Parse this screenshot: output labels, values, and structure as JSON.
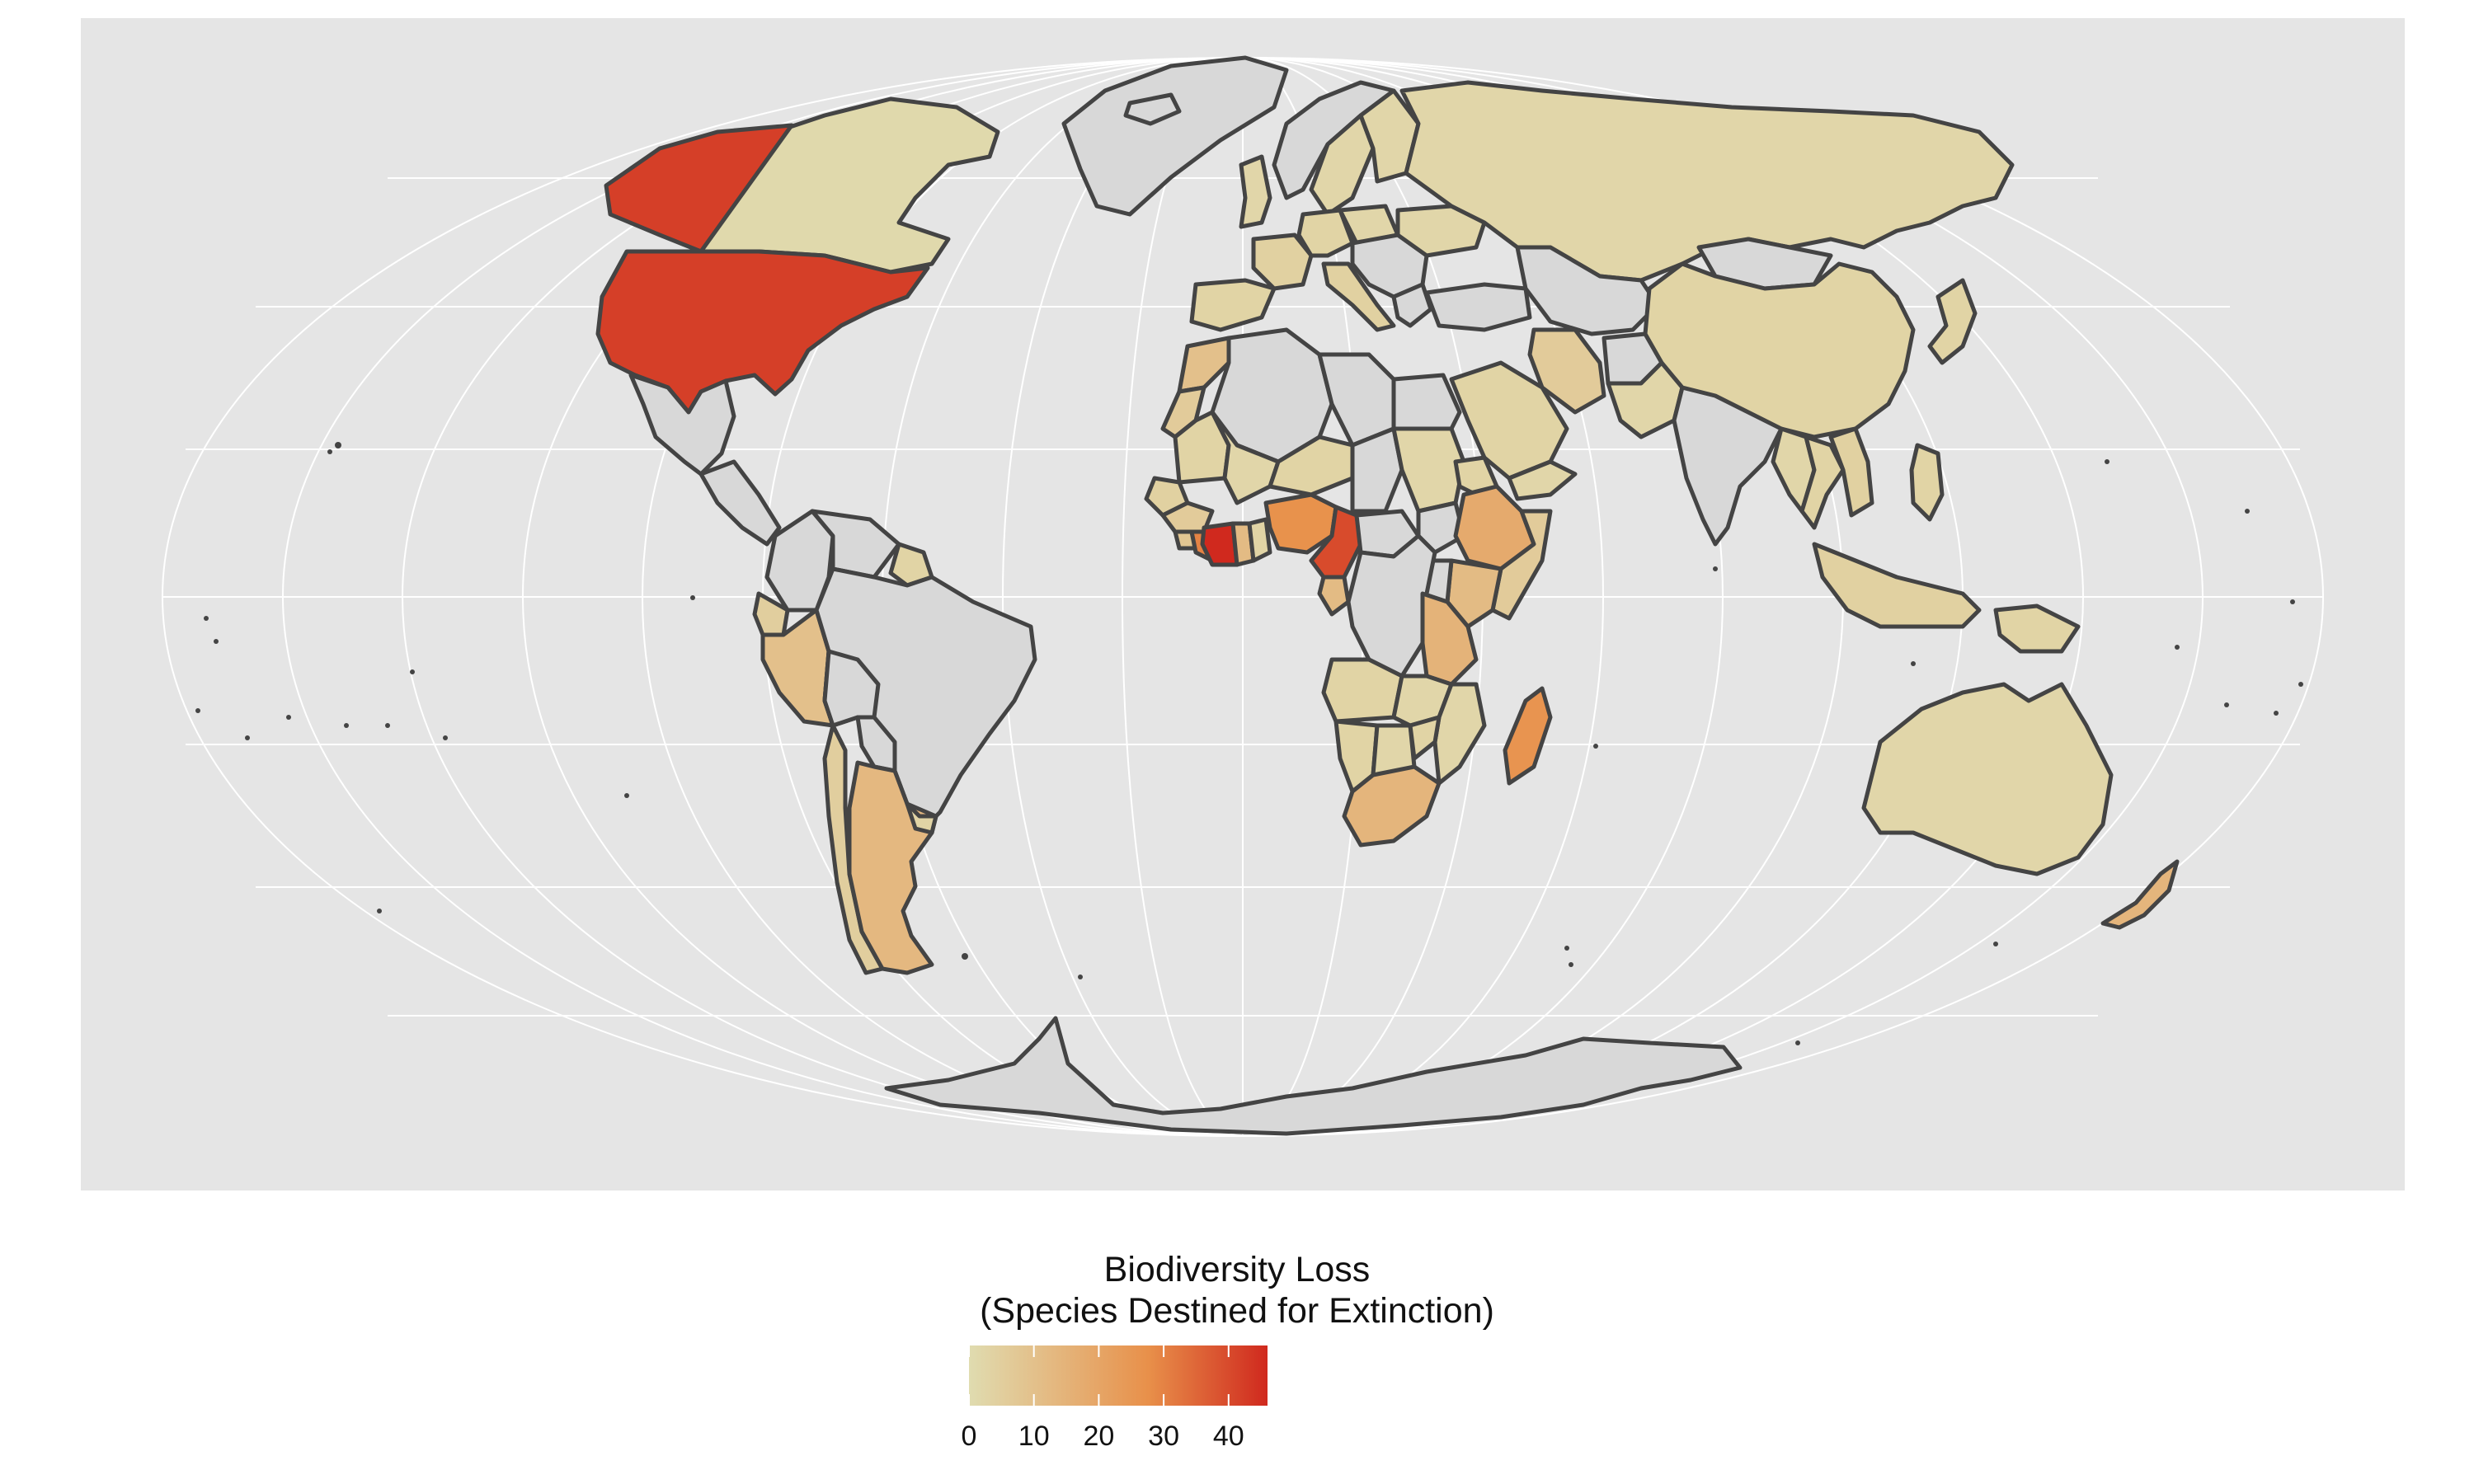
{
  "legend": {
    "title_line1": "Biodiversity Loss",
    "title_line2": "(Species Destined for Extinction)",
    "min": 0,
    "max": 46,
    "ticks": [
      0,
      10,
      20,
      30,
      40
    ],
    "tick_labels": [
      "0",
      "10",
      "20",
      "30",
      "40"
    ],
    "color_low": "#E0DCB0",
    "color_mid": "#E8904A",
    "color_high": "#D0291E"
  },
  "colors": {
    "panel_background": "#E5E5E5",
    "no_data_fill": "#D8D8D8",
    "border": "#444444",
    "grid": "#FFFFFF"
  },
  "map_data": {
    "projection": "mollweide",
    "variable": "species destined for extinction",
    "countries": [
      {
        "name": "Greenland",
        "value": null
      },
      {
        "name": "Canada",
        "value": 1
      },
      {
        "name": "Alaska (USA)",
        "value": 42
      },
      {
        "name": "United States",
        "value": 42
      },
      {
        "name": "Mexico",
        "value": null
      },
      {
        "name": "Central America",
        "value": null
      },
      {
        "name": "Colombia",
        "value": null
      },
      {
        "name": "Venezuela",
        "value": null
      },
      {
        "name": "Guyana",
        "value": 3
      },
      {
        "name": "Ecuador",
        "value": 5
      },
      {
        "name": "Peru",
        "value": 10
      },
      {
        "name": "Brazil",
        "value": null
      },
      {
        "name": "Bolivia",
        "value": null
      },
      {
        "name": "Paraguay",
        "value": null
      },
      {
        "name": "Chile",
        "value": 5
      },
      {
        "name": "Argentina",
        "value": 13
      },
      {
        "name": "Uruguay",
        "value": 3
      },
      {
        "name": "Iceland",
        "value": null
      },
      {
        "name": "Norway",
        "value": null
      },
      {
        "name": "Sweden",
        "value": 2
      },
      {
        "name": "Finland",
        "value": 2
      },
      {
        "name": "United Kingdom",
        "value": 2
      },
      {
        "name": "Spain",
        "value": 3
      },
      {
        "name": "France",
        "value": 4
      },
      {
        "name": "Germany",
        "value": 3
      },
      {
        "name": "Poland",
        "value": 2
      },
      {
        "name": "Italy",
        "value": 4
      },
      {
        "name": "Greece",
        "value": null
      },
      {
        "name": "Balkans",
        "value": null
      },
      {
        "name": "Ukraine",
        "value": 2
      },
      {
        "name": "Russia",
        "value": 2
      },
      {
        "name": "Turkey",
        "value": null
      },
      {
        "name": "Kazakhstan",
        "value": null
      },
      {
        "name": "Iran",
        "value": 6
      },
      {
        "name": "Saudi Arabia",
        "value": 3
      },
      {
        "name": "Yemen",
        "value": 2
      },
      {
        "name": "Afghanistan",
        "value": null
      },
      {
        "name": "Pakistan",
        "value": 2
      },
      {
        "name": "India",
        "value": null
      },
      {
        "name": "Mongolia",
        "value": null
      },
      {
        "name": "China",
        "value": 3
      },
      {
        "name": "Myanmar",
        "value": 2
      },
      {
        "name": "Thailand",
        "value": 3
      },
      {
        "name": "Vietnam",
        "value": 4
      },
      {
        "name": "Japan",
        "value": 3
      },
      {
        "name": "Philippines",
        "value": 3
      },
      {
        "name": "Indonesia",
        "value": 4
      },
      {
        "name": "Papua New Guinea",
        "value": 3
      },
      {
        "name": "Australia",
        "value": 2
      },
      {
        "name": "New Zealand",
        "value": 14
      },
      {
        "name": "Morocco",
        "value": 10
      },
      {
        "name": "Western Sahara",
        "value": 6
      },
      {
        "name": "Mauritania",
        "value": 3
      },
      {
        "name": "Algeria",
        "value": null
      },
      {
        "name": "Libya",
        "value": null
      },
      {
        "name": "Egypt",
        "value": null
      },
      {
        "name": "Mali",
        "value": 2
      },
      {
        "name": "Niger",
        "value": 3
      },
      {
        "name": "Chad",
        "value": null
      },
      {
        "name": "Sudan",
        "value": 2
      },
      {
        "name": "Eritrea",
        "value": 3
      },
      {
        "name": "Senegal",
        "value": 4
      },
      {
        "name": "Guinea",
        "value": 6
      },
      {
        "name": "Sierra Leone",
        "value": 8
      },
      {
        "name": "Liberia",
        "value": 30
      },
      {
        "name": "Cote d'Ivoire",
        "value": 46
      },
      {
        "name": "Ghana",
        "value": 12
      },
      {
        "name": "Togo/Benin",
        "value": 3
      },
      {
        "name": "Nigeria",
        "value": 27
      },
      {
        "name": "Cameroon",
        "value": 40
      },
      {
        "name": "Gabon",
        "value": 12
      },
      {
        "name": "Central African Republic",
        "value": null
      },
      {
        "name": "South Sudan",
        "value": null
      },
      {
        "name": "Ethiopia",
        "value": 18
      },
      {
        "name": "Somalia",
        "value": 6
      },
      {
        "name": "Kenya",
        "value": 12
      },
      {
        "name": "DR Congo",
        "value": null
      },
      {
        "name": "Uganda",
        "value": null
      },
      {
        "name": "Tanzania",
        "value": 15
      },
      {
        "name": "Angola",
        "value": 3
      },
      {
        "name": "Zambia",
        "value": 2
      },
      {
        "name": "Mozambique",
        "value": 2
      },
      {
        "name": "Namibia",
        "value": 3
      },
      {
        "name": "Botswana",
        "value": 2
      },
      {
        "name": "Zimbabwe",
        "value": 3
      },
      {
        "name": "South Africa",
        "value": 14
      },
      {
        "name": "Madagascar",
        "value": 26
      },
      {
        "name": "Antarctica",
        "value": null
      }
    ]
  }
}
